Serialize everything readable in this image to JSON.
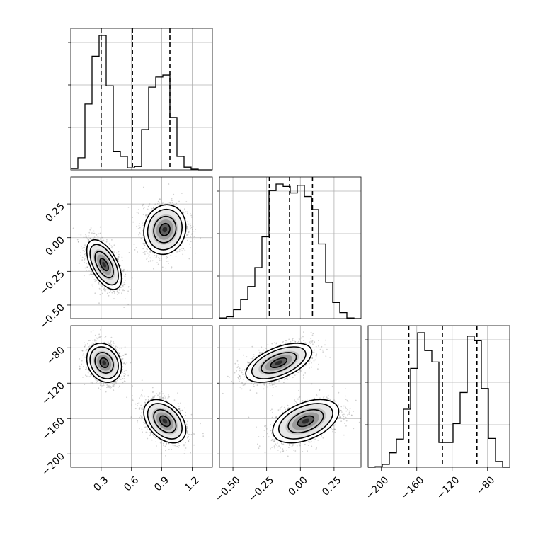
{
  "chart_data": {
    "type": "corner",
    "grid": true,
    "colors": {
      "line": "#000000",
      "grid": "#b0b0b0",
      "density": "#555555"
    },
    "parameters": [
      {
        "axis_ticks": [
          "0.3",
          "0.6",
          "0.9",
          "1.2"
        ],
        "range": [
          0.0,
          1.4
        ]
      },
      {
        "axis_ticks": [
          "−0.50",
          "−0.25",
          "0.00",
          "0.25"
        ],
        "range": [
          -0.6,
          0.45
        ]
      },
      {
        "axis_ticks": [
          "−200",
          "−160",
          "−120",
          "−80"
        ],
        "range": [
          -215,
          -55
        ]
      }
    ],
    "ytick_labels": {
      "p1": [
        "0.25",
        "0.00",
        "−0.25",
        "−0.50"
      ],
      "p2": [
        "−80",
        "−120",
        "−160",
        "−200"
      ]
    },
    "histograms": [
      {
        "param": 0,
        "edges": [
          0.0,
          0.07,
          0.14,
          0.21,
          0.28,
          0.35,
          0.42,
          0.49,
          0.56,
          0.63,
          0.7,
          0.77,
          0.84,
          0.91,
          0.98,
          1.05,
          1.12,
          1.19,
          1.26,
          1.33,
          1.4
        ],
        "counts": [
          2,
          18,
          98,
          169,
          200,
          125,
          27,
          20,
          3,
          5,
          60,
          123,
          138,
          141,
          78,
          20,
          4,
          1,
          0,
          0
        ],
        "quantiles": [
          0.3,
          0.61,
          0.98
        ]
      },
      {
        "param": 1,
        "edges": [
          -0.6,
          -0.5475,
          -0.495,
          -0.4425,
          -0.39,
          -0.3375,
          -0.285,
          -0.2325,
          -0.18,
          -0.1275,
          -0.075,
          -0.0225,
          0.03,
          0.0825,
          0.135,
          0.1875,
          0.24,
          0.2925,
          0.345,
          0.3975,
          0.45
        ],
        "counts": [
          1,
          3,
          15,
          32,
          54,
          86,
          138,
          216,
          227,
          223,
          212,
          225,
          206,
          184,
          126,
          61,
          27,
          10,
          1,
          0
        ],
        "quantiles": [
          -0.23,
          -0.08,
          0.09
        ]
      },
      {
        "param": 2,
        "edges": [
          -215,
          -207,
          -199,
          -191,
          -183,
          -175,
          -167,
          -159,
          -151,
          -143,
          -135,
          -127,
          -119,
          -111,
          -103,
          -95,
          -87,
          -79,
          -71,
          -63,
          -55
        ],
        "counts": [
          0,
          1,
          5,
          25,
          49,
          101,
          172,
          234,
          203,
          183,
          43,
          43,
          76,
          130,
          228,
          220,
          137,
          50,
          10,
          0
        ],
        "quantiles": [
          -169,
          -131,
          -92
        ]
      }
    ],
    "pairs": [
      {
        "x": 0,
        "y": 1,
        "clusters": [
          {
            "cx": 0.33,
            "cy": -0.2,
            "sx": 0.07,
            "sy": 0.075,
            "rho": -0.55,
            "n": 1400
          },
          {
            "cx": 0.93,
            "cy": 0.06,
            "sx": 0.085,
            "sy": 0.075,
            "rho": 0.1,
            "n": 1400
          }
        ]
      },
      {
        "x": 0,
        "y": 2,
        "clusters": [
          {
            "cx": 0.33,
            "cy": -97,
            "sx": 0.07,
            "sy": 9,
            "rho": -0.2,
            "n": 1400
          },
          {
            "cx": 0.93,
            "cy": -163,
            "sx": 0.085,
            "sy": 10,
            "rho": -0.4,
            "n": 1400
          }
        ]
      },
      {
        "x": 1,
        "y": 2,
        "clusters": [
          {
            "cx": -0.16,
            "cy": -97,
            "sx": 0.1,
            "sy": 9,
            "rho": 0.55,
            "n": 1400
          },
          {
            "cx": 0.04,
            "cy": -163,
            "sx": 0.1,
            "sy": 10,
            "rho": 0.45,
            "n": 1400
          }
        ]
      }
    ]
  }
}
